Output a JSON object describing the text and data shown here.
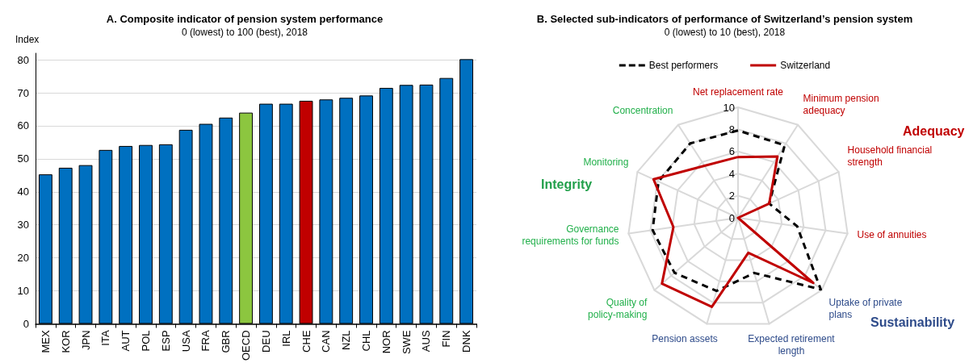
{
  "chart_data": [
    {
      "type": "bar",
      "title": "A. Composite indicator of pension system performance",
      "subtitle": "0 (lowest) to 100 (best), 2018",
      "ylabel": "Index",
      "categories": [
        "MEX",
        "KOR",
        "JPN",
        "ITA",
        "AUT",
        "POL",
        "ESP",
        "USA",
        "FRA",
        "GBR",
        "OECD",
        "DEU",
        "IRL",
        "CHE",
        "CAN",
        "NZL",
        "CHL",
        "NOR",
        "SWE",
        "AUS",
        "FIN",
        "DNK"
      ],
      "values": [
        45.3,
        47.3,
        48.1,
        52.7,
        53.9,
        54.2,
        54.4,
        58.8,
        60.6,
        62.5,
        64.0,
        66.7,
        66.7,
        67.6,
        68.0,
        68.5,
        69.2,
        71.5,
        72.4,
        72.5,
        74.5,
        80.2
      ],
      "colors": [
        "#0070c0",
        "#0070c0",
        "#0070c0",
        "#0070c0",
        "#0070c0",
        "#0070c0",
        "#0070c0",
        "#0070c0",
        "#0070c0",
        "#0070c0",
        "#8cc63f",
        "#0070c0",
        "#0070c0",
        "#c00000",
        "#0070c0",
        "#0070c0",
        "#0070c0",
        "#0070c0",
        "#0070c0",
        "#0070c0",
        "#0070c0",
        "#0070c0"
      ],
      "ylim": [
        0,
        82
      ],
      "yticks": [
        0,
        10,
        20,
        30,
        40,
        50,
        60,
        70,
        80
      ],
      "grid": "y"
    },
    {
      "type": "radar",
      "title": "B. Selected sub-indicators of performance of Switzerland’s pension system",
      "subtitle": "0 (lowest) to 10 (best), 2018",
      "categories": [
        "Net replacement rate",
        "Minimum pension adequacy",
        "Household financial strength",
        "Use of annuities",
        "Uptake of private plans",
        "Expected retirement length",
        "Pension assets",
        "Quality of policy-making",
        "Governance requirements for funds",
        "Monitoring",
        "Concentration"
      ],
      "colors": [
        "#c00000",
        "#c00000",
        "#c00000",
        "#c00000",
        "#2e4b8a",
        "#2e4b8a",
        "#2e4b8a",
        "#22b04b",
        "#22b04b",
        "#22b04b",
        "#22b04b"
      ],
      "series": [
        {
          "name": "Best performers",
          "color": "#000000",
          "line_style": "dashed",
          "values": [
            7.9,
            7.8,
            3.1,
            5.4,
            9.9,
            5.2,
            6.9,
            7.6,
            7.8,
            7.9,
            8.0
          ]
        },
        {
          "name": "Switzerland",
          "color": "#c00000",
          "line_style": "solid",
          "values": [
            5.5,
            6.6,
            3.1,
            0,
            9.0,
            3.3,
            8.4,
            9.1,
            5.9,
            8.4,
            5.6
          ]
        }
      ],
      "annotations": [
        "Adequacy",
        "Integrity",
        "Sustainability"
      ],
      "ylim": [
        0,
        10
      ],
      "yticks": [
        0,
        2,
        4,
        6,
        8,
        10
      ],
      "grid": true,
      "legend": "top",
      "marker": "none"
    }
  ]
}
